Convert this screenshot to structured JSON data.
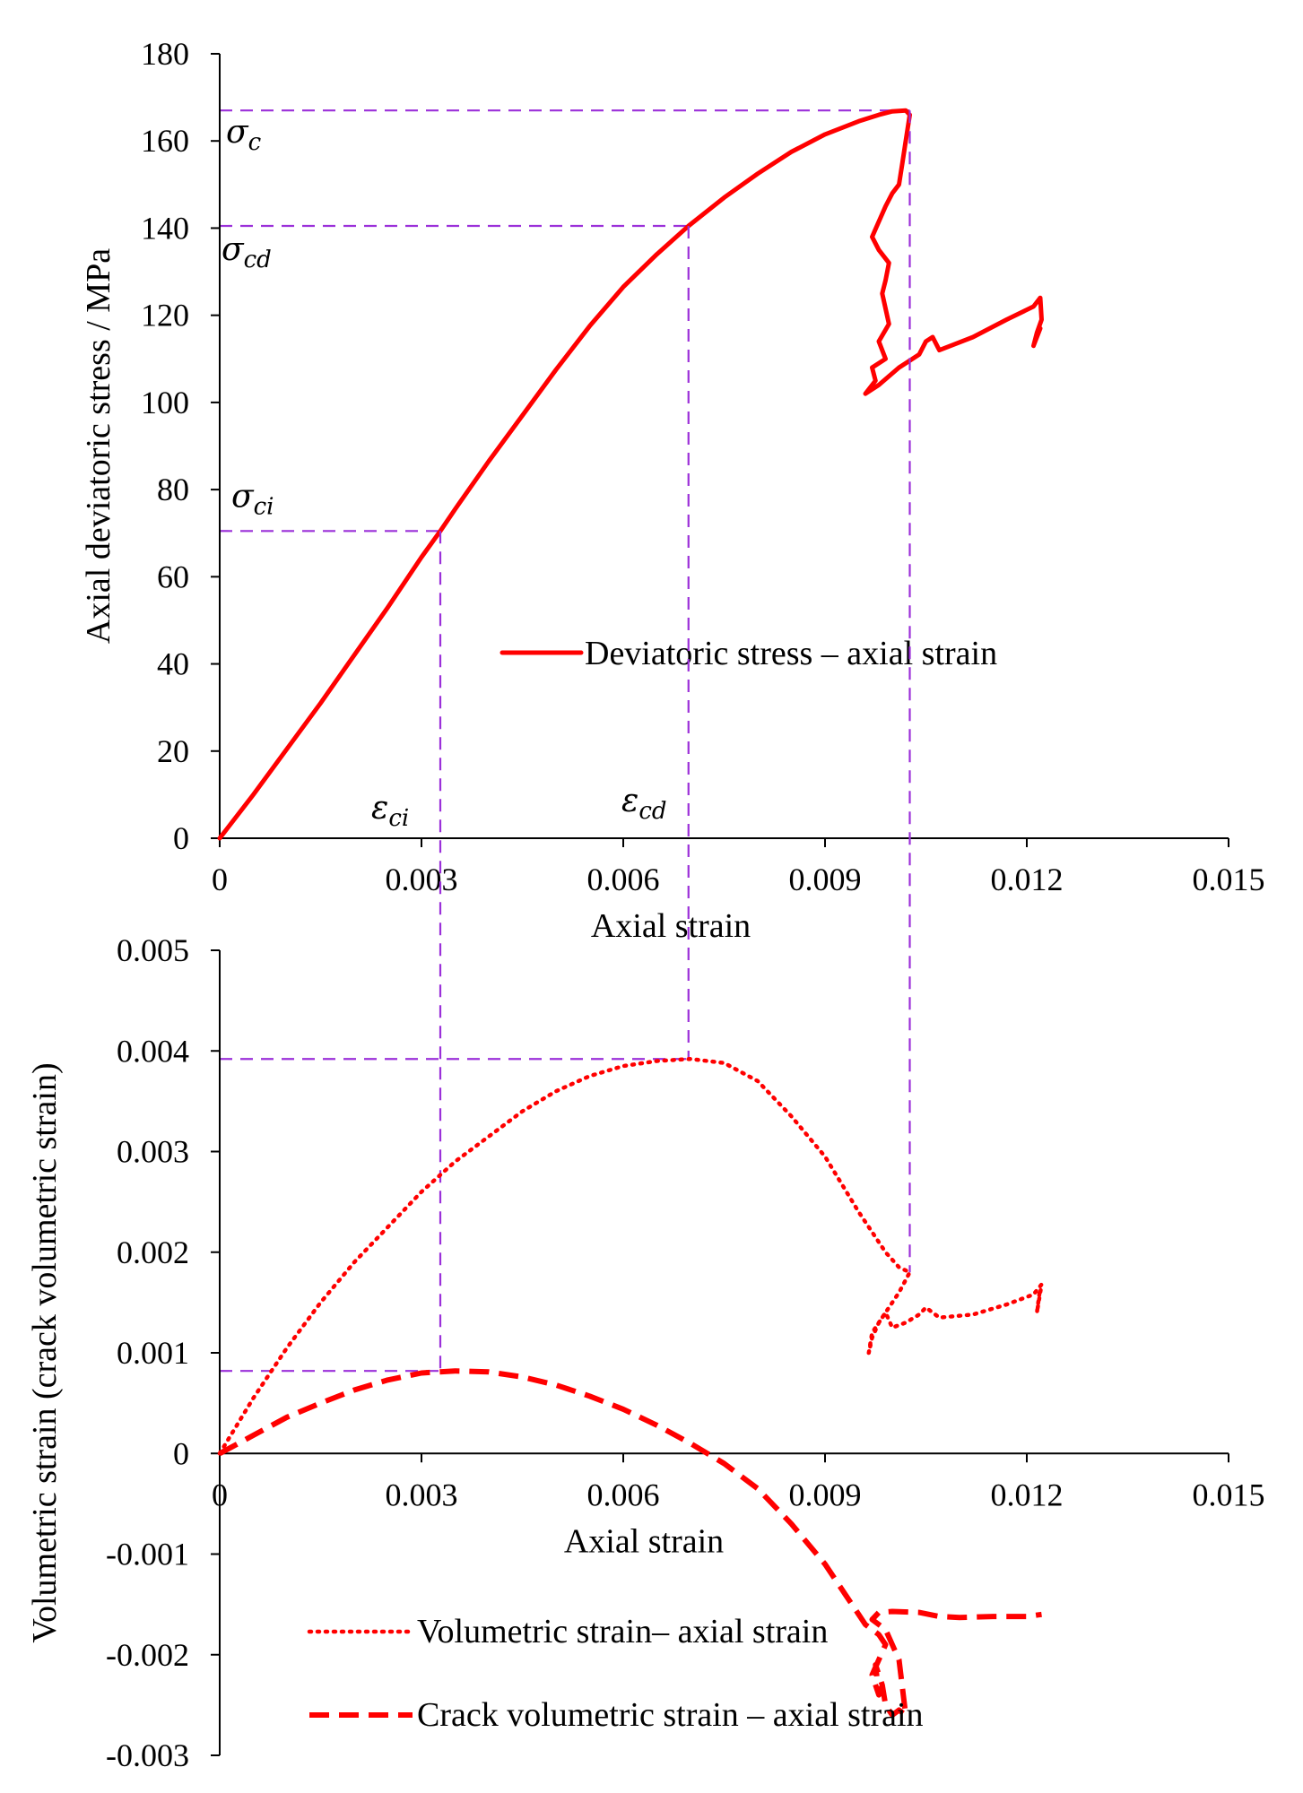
{
  "chart_data": [
    {
      "type": "line",
      "id": "stress",
      "xlabel": "Axial strain",
      "ylabel": "Axial deviatoric stress / MPa",
      "xlim": [
        0,
        0.015
      ],
      "ylim": [
        0,
        180
      ],
      "xticks": [
        "0",
        "0.003",
        "0.006",
        "0.009",
        "0.012",
        "0.015"
      ],
      "yticks": [
        "0",
        "20",
        "40",
        "60",
        "80",
        "100",
        "120",
        "140",
        "160",
        "180"
      ],
      "legend": "center",
      "annotations": {
        "sigma_c": {
          "base": "σ",
          "sub": "c",
          "value": 167
        },
        "sigma_cd": {
          "base": "σ",
          "sub": "cd",
          "value": 140.5
        },
        "sigma_ci": {
          "base": "σ",
          "sub": "ci",
          "value": 70.5
        },
        "eps_ci": {
          "base": "ε",
          "sub": "ci",
          "value": 0.00328
        },
        "eps_cd": {
          "base": "ε",
          "sub": "cd",
          "value": 0.00697
        },
        "eps_c": {
          "value": 0.01026
        }
      },
      "series": [
        {
          "name": "Deviatoric stress – axial strain",
          "style": "solid",
          "color": "#ff0000",
          "x": [
            0,
            0.0005,
            0.001,
            0.0015,
            0.002,
            0.0025,
            0.003,
            0.00328,
            0.0035,
            0.004,
            0.0045,
            0.005,
            0.0055,
            0.006,
            0.0065,
            0.00697,
            0.0075,
            0.008,
            0.0085,
            0.009,
            0.0095,
            0.0098,
            0.01,
            0.0102,
            0.01026,
            0.0102,
            0.01015,
            0.0101,
            0.01,
            0.0099,
            0.0097,
            0.0098,
            0.00995,
            0.0099,
            0.00985,
            0.00995,
            0.0098,
            0.0099,
            0.0097,
            0.00975,
            0.0096,
            0.0098,
            0.0101,
            0.0104,
            0.0105,
            0.0106,
            0.0107,
            0.0112,
            0.0117,
            0.0121,
            0.0122,
            0.01222,
            0.01215,
            0.0121,
            0.0122
          ],
          "y": [
            0,
            10,
            20.5,
            31,
            42,
            53,
            64.5,
            70.5,
            75.5,
            86.5,
            97,
            107.5,
            117.5,
            126.5,
            134,
            140.5,
            147,
            152.5,
            157.5,
            161.5,
            164.5,
            166,
            166.8,
            167,
            166,
            160,
            155,
            150,
            148,
            145,
            138,
            135,
            132,
            128,
            125,
            118,
            114,
            110,
            108,
            105,
            102,
            104,
            108,
            111,
            114,
            115,
            112,
            115,
            119,
            122,
            124,
            119,
            116,
            113,
            117
          ]
        }
      ]
    },
    {
      "type": "line",
      "id": "volumetric",
      "xlabel": "Axial strain",
      "ylabel": "Volumetric strain (crack volumetric strain)",
      "xlim": [
        0,
        0.015
      ],
      "ylim": [
        -0.003,
        0.005
      ],
      "xticks": [
        "0",
        "0.003",
        "0.006",
        "0.009",
        "0.012",
        "0.015"
      ],
      "yticks": [
        "-0.003",
        "-0.002",
        "-0.001",
        "0",
        "0.001",
        "0.002",
        "0.003",
        "0.004",
        "0.005"
      ],
      "legend": "bottom-left",
      "guides": {
        "vol_peak": 0.00392,
        "crack_peak": 0.00082
      },
      "series": [
        {
          "name": "Volumetric strain– axial strain",
          "style": "dotted",
          "color": "#ff0000",
          "x": [
            0,
            0.0005,
            0.001,
            0.0015,
            0.002,
            0.0025,
            0.003,
            0.0035,
            0.004,
            0.0045,
            0.005,
            0.0055,
            0.006,
            0.0065,
            0.007,
            0.0075,
            0.008,
            0.0085,
            0.009,
            0.0095,
            0.0099,
            0.0101,
            0.01026,
            0.0101,
            0.0099,
            0.0098,
            0.0097,
            0.00965,
            0.0097,
            0.0099,
            0.01,
            0.0102,
            0.0104,
            0.0105,
            0.0107,
            0.0112,
            0.0117,
            0.0121,
            0.01222,
            0.01215,
            0.0122
          ],
          "y": [
            0,
            0.00055,
            0.00105,
            0.0015,
            0.0019,
            0.00225,
            0.0026,
            0.0029,
            0.00315,
            0.0034,
            0.0036,
            0.00375,
            0.00385,
            0.0039,
            0.00392,
            0.00388,
            0.0037,
            0.00335,
            0.00295,
            0.0024,
            0.002,
            0.00185,
            0.0018,
            0.0016,
            0.0014,
            0.0013,
            0.00115,
            0.001,
            0.0012,
            0.0014,
            0.00125,
            0.0013,
            0.00138,
            0.00145,
            0.00135,
            0.00138,
            0.00148,
            0.00158,
            0.00168,
            0.0014,
            0.00165
          ]
        },
        {
          "name": "Crack volumetric strain – axial strain",
          "style": "dashed",
          "color": "#ff0000",
          "x": [
            0,
            0.0005,
            0.001,
            0.0015,
            0.002,
            0.0025,
            0.003,
            0.0035,
            0.004,
            0.0045,
            0.005,
            0.0055,
            0.006,
            0.0065,
            0.007,
            0.0075,
            0.008,
            0.0085,
            0.009,
            0.0093,
            0.0095,
            0.0096,
            0.0098,
            0.0099,
            0.0097,
            0.0098,
            0.00975,
            0.00985,
            0.0099,
            0.01,
            0.0101,
            0.0102,
            0.0101,
            0.0099,
            0.0097,
            0.0098,
            0.01,
            0.0104,
            0.0107,
            0.011,
            0.0115,
            0.012,
            0.01222
          ],
          "y": [
            0,
            0.00018,
            0.00036,
            0.0005,
            0.00063,
            0.00073,
            0.0008,
            0.00082,
            0.00081,
            0.00076,
            0.00068,
            0.00057,
            0.00044,
            0.00028,
            0.0001,
            -0.0001,
            -0.00035,
            -0.0007,
            -0.0011,
            -0.0014,
            -0.0016,
            -0.0017,
            -0.0018,
            -0.0019,
            -0.0022,
            -0.0024,
            -0.0021,
            -0.0023,
            -0.0025,
            -0.0026,
            -0.00255,
            -0.0026,
            -0.00205,
            -0.00175,
            -0.00165,
            -0.00158,
            -0.00157,
            -0.00158,
            -0.00162,
            -0.00163,
            -0.00162,
            -0.00162,
            -0.0016
          ]
        }
      ]
    }
  ]
}
